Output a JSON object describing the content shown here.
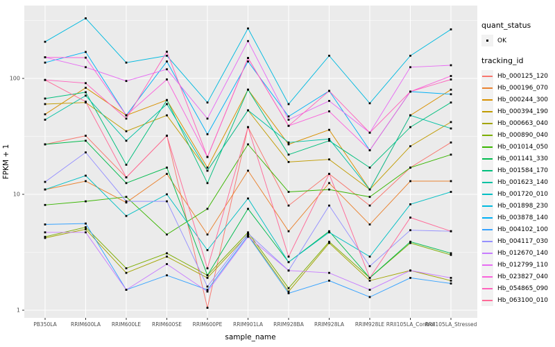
{
  "figure": {
    "panel_bg": "#EBEBEB",
    "grid_color": "#FFFFFF",
    "tick_label_color": "#4D4D4D",
    "axis_title_color": "#000000",
    "point_color": "#000000"
  },
  "legend": {
    "quant_status_title": "quant_status",
    "quant_status_items": [
      {
        "label": "OK",
        "marker": "black-point"
      }
    ],
    "tracking_id_title": "tracking_id",
    "position": "right"
  },
  "chart_data": {
    "type": "line",
    "title": "",
    "xlabel": "sample_name",
    "ylabel": "FPKM + 1",
    "y_scale": "log10",
    "y_ticks": [
      1,
      10,
      100
    ],
    "y_minor_ticks": [
      3.162,
      31.62,
      316.2
    ],
    "ylim": [
      1,
      450
    ],
    "grid": true,
    "legend_position": "right",
    "marker_legend": {
      "title": "quant_status",
      "label": "OK",
      "color": "#000000",
      "shape": "square-point"
    },
    "series_legend_title": "tracking_id",
    "categories": [
      "PB350LA",
      "RRIM600LA",
      "RRIM600LE",
      "RRIM600SE",
      "RRIM600PE",
      "RRIM901LA",
      "RRIM928BA",
      "RRIM928LA",
      "RRIM928LE",
      "RRII105LA_Control",
      "RRII105LA_Stressed"
    ],
    "series": [
      {
        "name": "Hb_000125_120",
        "color": "#F8766D",
        "values": [
          27,
          32,
          14,
          32,
          1.05,
          38,
          8,
          15,
          8,
          17,
          28
        ]
      },
      {
        "name": "Hb_000196_070",
        "color": "#EA8331",
        "values": [
          11,
          13,
          8.5,
          15,
          4.5,
          16,
          4.8,
          12.5,
          5.5,
          13,
          13
        ]
      },
      {
        "name": "Hb_000244_300",
        "color": "#D89000",
        "values": [
          49,
          83,
          48,
          65,
          17,
          80,
          27,
          36,
          11,
          48,
          80
        ]
      },
      {
        "name": "Hb_000394_190",
        "color": "#C09B00",
        "values": [
          60,
          62,
          35,
          48,
          16,
          53,
          19,
          20,
          11,
          26,
          42
        ]
      },
      {
        "name": "Hb_000663_040",
        "color": "#A3A500",
        "values": [
          4.2,
          5.0,
          2.1,
          2.9,
          1.9,
          4.5,
          1.45,
          3.8,
          1.8,
          2.2,
          1.8
        ]
      },
      {
        "name": "Hb_000890_040",
        "color": "#7CAE00",
        "values": [
          4.3,
          5.2,
          2.3,
          3.1,
          2.0,
          4.7,
          1.55,
          3.9,
          1.9,
          3.8,
          3.0
        ]
      },
      {
        "name": "Hb_001014_050",
        "color": "#39B600",
        "values": [
          8.1,
          8.7,
          9.5,
          4.5,
          7.5,
          27,
          10.5,
          11,
          9.5,
          17,
          22
        ]
      },
      {
        "name": "Hb_001141_330",
        "color": "#00BB4E",
        "values": [
          27,
          29,
          12.5,
          17,
          2.0,
          7.5,
          2.6,
          4.8,
          1.9,
          3.9,
          3.1
        ]
      },
      {
        "name": "Hb_001584_170",
        "color": "#00BF7D",
        "values": [
          67,
          76,
          18,
          65,
          12.5,
          80,
          22,
          29,
          17,
          38,
          62
        ]
      },
      {
        "name": "Hb_001623_140",
        "color": "#00C1A3",
        "values": [
          44,
          71,
          29,
          60,
          16,
          53,
          28,
          30,
          11,
          48,
          37
        ]
      },
      {
        "name": "Hb_001720_010",
        "color": "#00BFC4",
        "values": [
          11,
          14.5,
          6.5,
          10,
          3.3,
          9.2,
          2.6,
          4.7,
          2.9,
          8.2,
          10.5
        ]
      },
      {
        "name": "Hb_001898_230",
        "color": "#00BAE0",
        "values": [
          207,
          330,
          137,
          157,
          62,
          270,
          60,
          157,
          61,
          157,
          265
        ]
      },
      {
        "name": "Hb_003878_140",
        "color": "#00B0F6",
        "values": [
          137,
          169,
          48,
          140,
          33,
          140,
          47,
          78,
          24,
          77,
          73
        ]
      },
      {
        "name": "Hb_004102_100",
        "color": "#35A2FF",
        "values": [
          5.5,
          5.6,
          1.5,
          2.0,
          1.5,
          4.4,
          1.4,
          1.8,
          1.3,
          1.9,
          1.7
        ]
      },
      {
        "name": "Hb_004117_030",
        "color": "#9590FF",
        "values": [
          12.8,
          23,
          8.7,
          8.7,
          1.6,
          4.6,
          2.2,
          8.0,
          2.4,
          4.9,
          4.8
        ]
      },
      {
        "name": "Hb_012670_140",
        "color": "#C77CFF",
        "values": [
          4.7,
          4.7,
          1.5,
          2.5,
          1.45,
          4.3,
          2.2,
          2.1,
          1.5,
          2.2,
          1.9
        ]
      },
      {
        "name": "Hb_012799_110",
        "color": "#E76BF3",
        "values": [
          152,
          125,
          95,
          120,
          45,
          210,
          44,
          64,
          34,
          125,
          130
        ]
      },
      {
        "name": "Hb_023827_040",
        "color": "#FA62DB",
        "values": [
          152,
          151,
          48,
          98,
          21,
          150,
          39,
          52,
          24,
          77,
          105
        ]
      },
      {
        "name": "Hb_054865_090",
        "color": "#FF62BC",
        "values": [
          97,
          91,
          45,
          170,
          21,
          150,
          39,
          78,
          34,
          77,
          98
        ]
      },
      {
        "name": "Hb_063100_010",
        "color": "#FF6A98",
        "values": [
          97,
          63,
          14,
          32,
          2.3,
          38,
          2.9,
          15,
          1.9,
          6.3,
          4.8
        ]
      }
    ]
  }
}
